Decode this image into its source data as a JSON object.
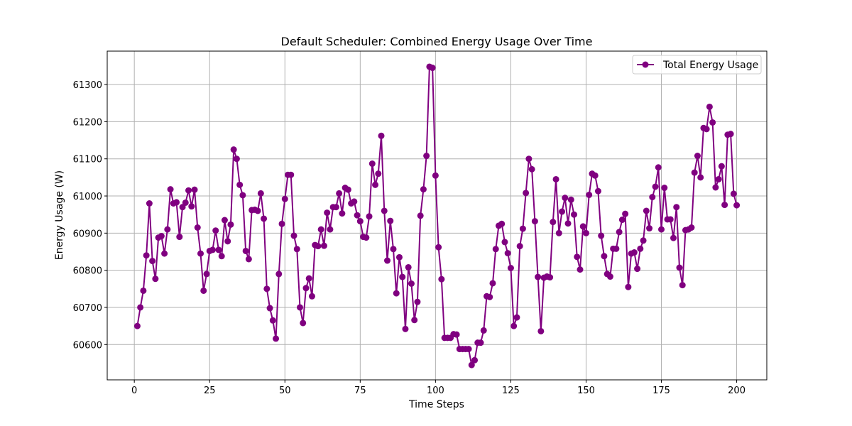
{
  "chart_data": {
    "type": "line",
    "title": "Default Scheduler: Combined Energy Usage Over Time",
    "xlabel": "Time Steps",
    "ylabel": "Energy Usage (W)",
    "xlim": [
      -9,
      210
    ],
    "ylim": [
      60505,
      61390
    ],
    "xticks": [
      0,
      25,
      50,
      75,
      100,
      125,
      150,
      175,
      200
    ],
    "yticks": [
      60600,
      60700,
      60800,
      60900,
      61000,
      61100,
      61200,
      61300
    ],
    "grid": true,
    "legend_position": "top-right",
    "series": [
      {
        "name": "Total Energy Usage",
        "color": "#800080",
        "marker": "circle",
        "x": [
          1,
          2,
          3,
          4,
          5,
          6,
          7,
          8,
          9,
          10,
          11,
          12,
          13,
          14,
          15,
          16,
          17,
          18,
          19,
          20,
          21,
          22,
          23,
          24,
          25,
          26,
          27,
          28,
          29,
          30,
          31,
          32,
          33,
          34,
          35,
          36,
          37,
          38,
          39,
          40,
          41,
          42,
          43,
          44,
          45,
          46,
          47,
          48,
          49,
          50,
          51,
          52,
          53,
          54,
          55,
          56,
          57,
          58,
          59,
          60,
          61,
          62,
          63,
          64,
          65,
          66,
          67,
          68,
          69,
          70,
          71,
          72,
          73,
          74,
          75,
          76,
          77,
          78,
          79,
          80,
          81,
          82,
          83,
          84,
          85,
          86,
          87,
          88,
          89,
          90,
          91,
          92,
          93,
          94,
          95,
          96,
          97,
          98,
          99,
          100,
          101,
          102,
          103,
          104,
          105,
          106,
          107,
          108,
          109,
          110,
          111,
          112,
          113,
          114,
          115,
          116,
          117,
          118,
          119,
          120,
          121,
          122,
          123,
          124,
          125,
          126,
          127,
          128,
          129,
          130,
          131,
          132,
          133,
          134,
          135,
          136,
          137,
          138,
          139,
          140,
          141,
          142,
          143,
          144,
          145,
          146,
          147,
          148,
          149,
          150,
          151,
          152,
          153,
          154,
          155,
          156,
          157,
          158,
          159,
          160,
          161,
          162,
          163,
          164,
          165,
          166,
          167,
          168,
          169,
          170,
          171,
          172,
          173,
          174,
          175,
          176,
          177,
          178,
          179,
          180,
          181,
          182,
          183,
          184,
          185,
          186,
          187,
          188,
          189,
          190,
          191,
          192,
          193,
          194,
          195,
          196,
          197,
          198,
          199,
          200
        ],
        "values": [
          60650,
          60700,
          60745,
          60840,
          60980,
          60825,
          60777,
          60888,
          60892,
          60845,
          60910,
          61018,
          60980,
          60983,
          60890,
          60970,
          60982,
          61015,
          60972,
          61017,
          60915,
          60845,
          60745,
          60790,
          60852,
          60855,
          60907,
          60855,
          60838,
          60935,
          60878,
          60923,
          61125,
          61100,
          61030,
          61002,
          60852,
          60830,
          60962,
          60963,
          60960,
          61007,
          60939,
          60750,
          60698,
          60665,
          60616,
          60790,
          60925,
          60992,
          61057,
          61057,
          60893,
          60857,
          60700,
          60658,
          60752,
          60778,
          60730,
          60868,
          60865,
          60910,
          60866,
          60955,
          60910,
          60970,
          60970,
          61007,
          60953,
          61022,
          61017,
          60980,
          60985,
          60948,
          60932,
          60890,
          60888,
          60945,
          61087,
          61030,
          61060,
          61162,
          60960,
          60826,
          60933,
          60857,
          60738,
          60835,
          60782,
          60642,
          60808,
          60764,
          60666,
          60715,
          60947,
          61018,
          61108,
          61348,
          61345,
          61055,
          60862,
          60776,
          60618,
          60618,
          60618,
          60628,
          60627,
          60588,
          60588,
          60588,
          60588,
          60545,
          60558,
          60605,
          60605,
          60638,
          60730,
          60728,
          60765,
          60857,
          60920,
          60925,
          60876,
          60846,
          60806,
          60650,
          60673,
          60865,
          60912,
          61008,
          61100,
          61072,
          60932,
          60782,
          60636,
          60780,
          60783,
          60781,
          60930,
          61045,
          60900,
          60958,
          60995,
          60926,
          60990,
          60950,
          60836,
          60802,
          60918,
          60900,
          61003,
          61060,
          61055,
          61013,
          60893,
          60838,
          60790,
          60783,
          60858,
          60858,
          60903,
          60936,
          60952,
          60755,
          60845,
          60848,
          60804,
          60858,
          60880,
          60960,
          60913,
          60997,
          61025,
          61077,
          60910,
          61022,
          60937,
          60937,
          60887,
          60970,
          60807,
          60760,
          60908,
          60910,
          60915,
          61063,
          61108,
          61050,
          61183,
          61180,
          61240,
          61198,
          61023,
          61045,
          61080,
          60976,
          61165,
          61167,
          61006,
          60975
        ]
      }
    ]
  }
}
